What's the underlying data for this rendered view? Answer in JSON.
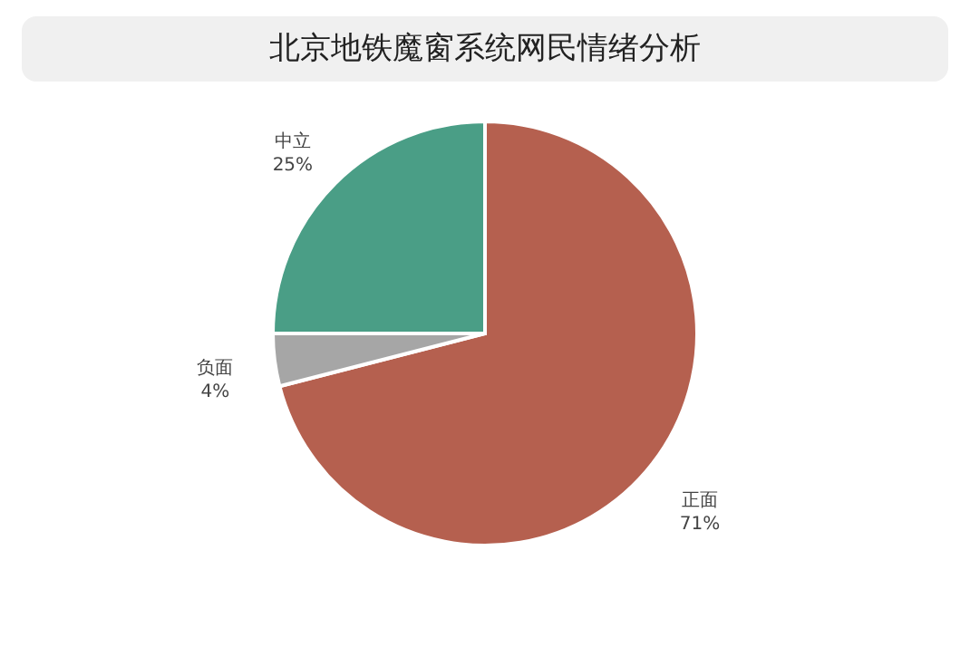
{
  "chart_data": {
    "type": "pie",
    "title": "北京地铁魔窗系统网民情绪分析",
    "categories": [
      "正面",
      "负面",
      "中立"
    ],
    "values": [
      71,
      4,
      25
    ],
    "value_labels": [
      "71%",
      "4%",
      "25%"
    ],
    "colors": [
      "#b5604f",
      "#a6a6a6",
      "#4a9e86"
    ]
  }
}
